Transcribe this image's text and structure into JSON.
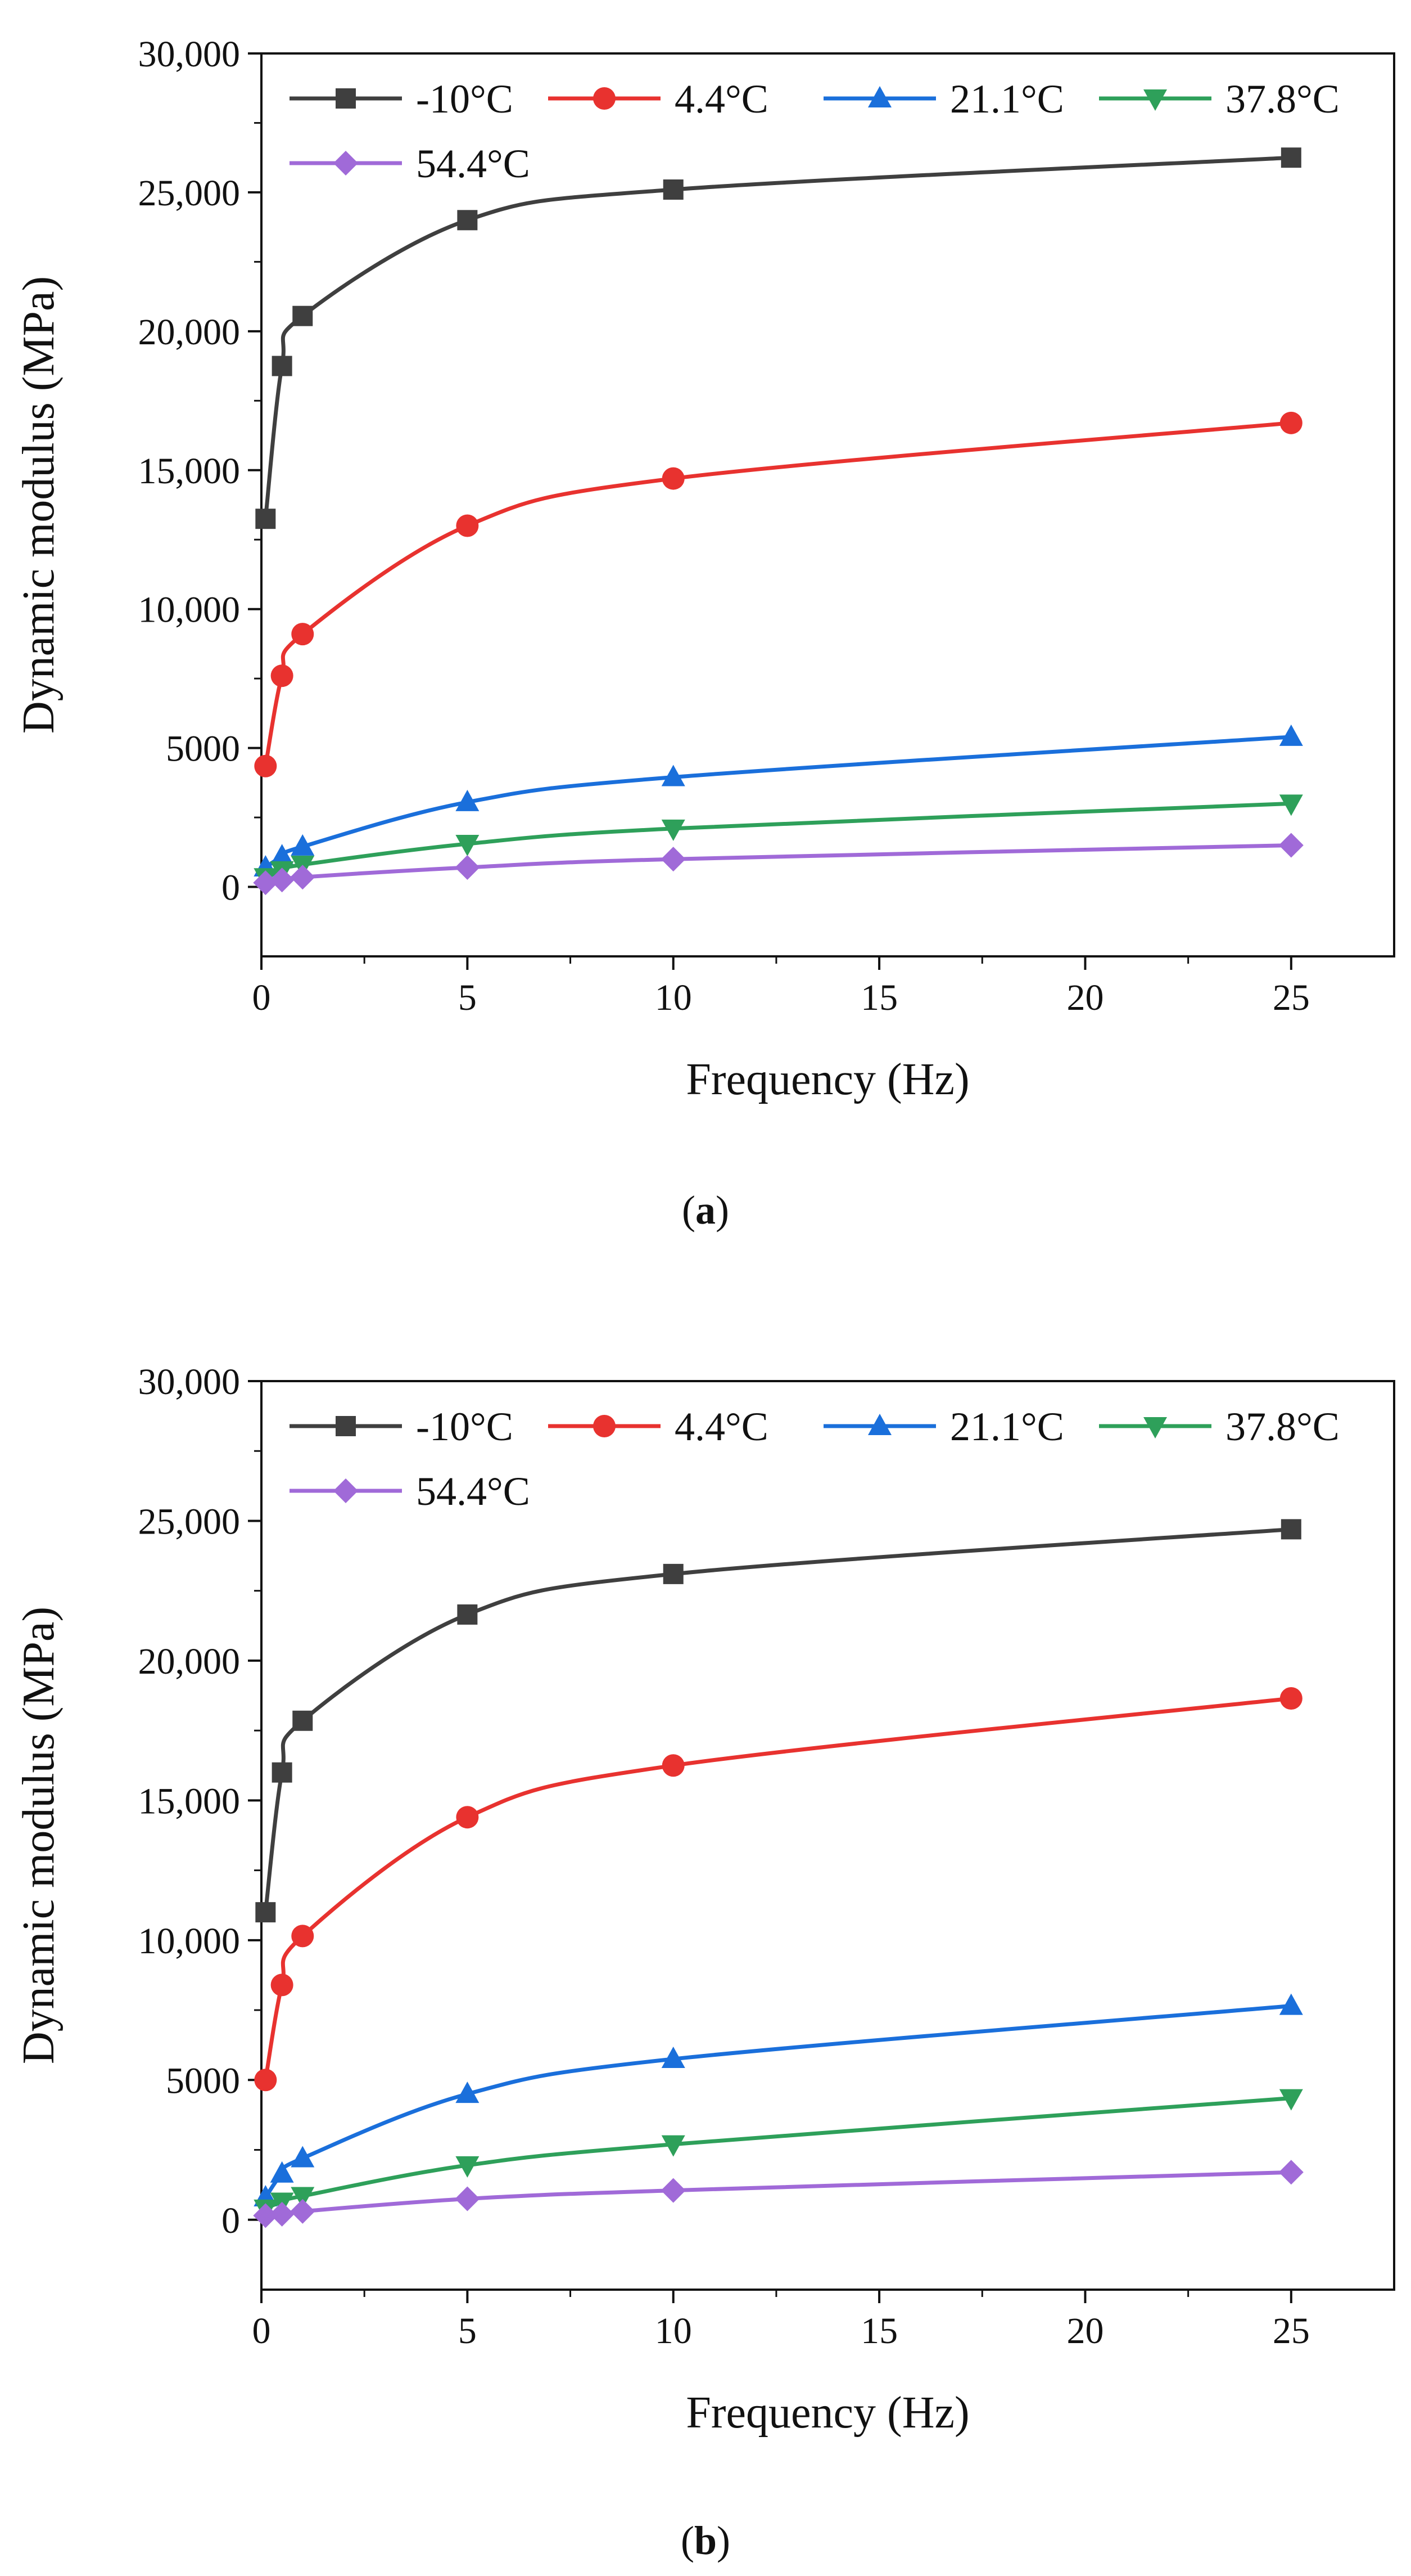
{
  "figure": {
    "panels": [
      {
        "id": "a",
        "caption_open": "(",
        "caption_letter": "a",
        "caption_close": ")"
      },
      {
        "id": "b",
        "caption_open": "(",
        "caption_letter": "b",
        "caption_close": ")"
      }
    ]
  },
  "chart_data": [
    {
      "type": "line",
      "panel": "a",
      "title": "",
      "xlabel": "Frequency (Hz)",
      "ylabel": "Dynamic modulus (MPa)",
      "xlim": [
        0,
        27.5
      ],
      "ylim": [
        -2500,
        30000
      ],
      "x_ticks": [
        0,
        5,
        10,
        15,
        20,
        25
      ],
      "x_tick_labels": [
        "0",
        "5",
        "10",
        "15",
        "20",
        "25"
      ],
      "y_ticks": [
        0,
        5000,
        10000,
        15000,
        20000,
        25000,
        30000
      ],
      "y_tick_labels": [
        "0",
        "5000",
        "10,000",
        "15,000",
        "20,000",
        "25,000",
        "30,000"
      ],
      "grid": false,
      "legend_position": "top",
      "x": [
        0.1,
        0.5,
        1,
        5,
        10,
        25
      ],
      "series": [
        {
          "name": "-10°C",
          "color": "#3f3f3f",
          "marker": "square",
          "values": [
            13250,
            18750,
            20550,
            24000,
            25100,
            26250
          ]
        },
        {
          "name": "4.4°C",
          "color": "#e8322f",
          "marker": "circle",
          "values": [
            4350,
            7600,
            9100,
            13000,
            14700,
            16700
          ]
        },
        {
          "name": "21.1°C",
          "color": "#1a6fdb",
          "marker": "triangle-up",
          "values": [
            700,
            1100,
            1450,
            3050,
            3950,
            5400
          ]
        },
        {
          "name": "37.8°C",
          "color": "#2ea05a",
          "marker": "triangle-down",
          "values": [
            350,
            600,
            800,
            1550,
            2100,
            3000
          ]
        },
        {
          "name": "54.4°C",
          "color": "#a06ad8",
          "marker": "diamond",
          "values": [
            150,
            250,
            350,
            700,
            1000,
            1500
          ]
        }
      ]
    },
    {
      "type": "line",
      "panel": "b",
      "title": "",
      "xlabel": "Frequency (Hz)",
      "ylabel": "Dynamic modulus (MPa)",
      "xlim": [
        0,
        27.5
      ],
      "ylim": [
        -2500,
        30000
      ],
      "x_ticks": [
        0,
        5,
        10,
        15,
        20,
        25
      ],
      "x_tick_labels": [
        "0",
        "5",
        "10",
        "15",
        "20",
        "25"
      ],
      "y_ticks": [
        0,
        5000,
        10000,
        15000,
        20000,
        25000,
        30000
      ],
      "y_tick_labels": [
        "0",
        "5000",
        "10,000",
        "15,000",
        "20,000",
        "25,000",
        "30,000"
      ],
      "grid": false,
      "legend_position": "top",
      "x": [
        0.1,
        0.5,
        1,
        5,
        10,
        25
      ],
      "series": [
        {
          "name": "-10°C",
          "color": "#3f3f3f",
          "marker": "square",
          "values": [
            11000,
            16000,
            17850,
            21650,
            23100,
            24700
          ]
        },
        {
          "name": "4.4°C",
          "color": "#e8322f",
          "marker": "circle",
          "values": [
            5000,
            8400,
            10150,
            14400,
            16250,
            18650
          ]
        },
        {
          "name": "21.1°C",
          "color": "#1a6fdb",
          "marker": "triangle-up",
          "values": [
            800,
            1650,
            2200,
            4500,
            5750,
            7650
          ]
        },
        {
          "name": "37.8°C",
          "color": "#2ea05a",
          "marker": "triangle-down",
          "values": [
            400,
            650,
            850,
            1950,
            2700,
            4350
          ]
        },
        {
          "name": "54.4°C",
          "color": "#a06ad8",
          "marker": "diamond",
          "values": [
            150,
            200,
            300,
            750,
            1050,
            1700
          ]
        }
      ]
    }
  ]
}
